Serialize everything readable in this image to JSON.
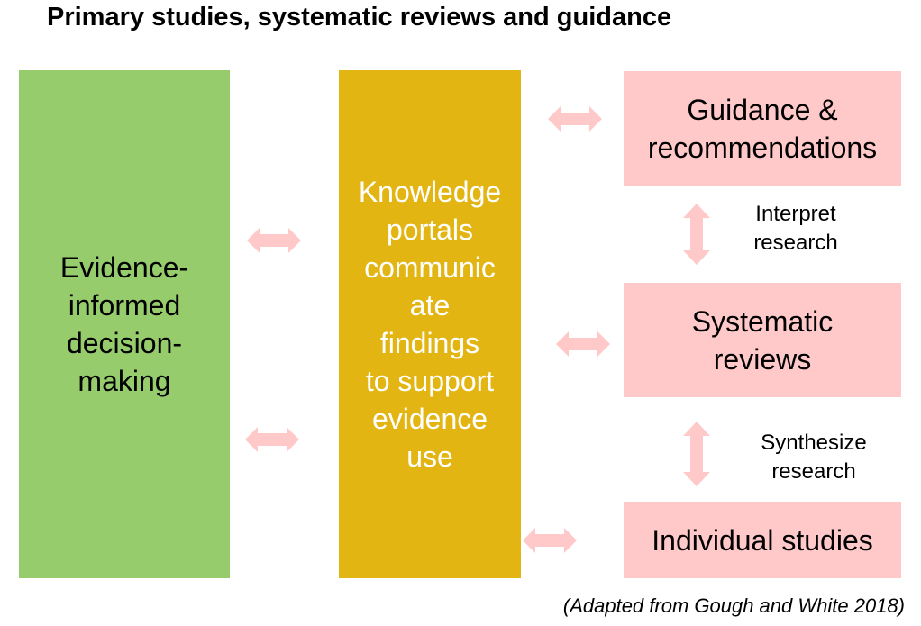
{
  "title": "Primary studies, systematic reviews and guidance",
  "boxes": {
    "decision": "Evidence-\ninformed\ndecision-\nmaking",
    "portals": "Knowledge\nportals\ncommunic\nate\nfindings\nto support\nevidence\nuse",
    "guidance": "Guidance &\nrecommendations",
    "reviews": "Systematic\nreviews",
    "studies": "Individual studies"
  },
  "links": {
    "interpret": "Interpret\nresearch",
    "synthesize": "Synthesize\nresearch"
  },
  "citation": "(Adapted from Gough and White 2018)",
  "colors": {
    "decision_box": "#96cc6c",
    "portal_box": "#e3b513",
    "level_box": "#ffc9c9",
    "arrow": "#ffc9c9"
  }
}
